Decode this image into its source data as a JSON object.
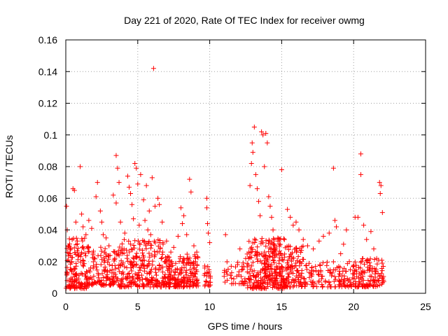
{
  "chart_data": {
    "type": "scatter",
    "title": "Day 221 of 2020, Rate Of TEC Index for receiver owmg",
    "xlabel": "GPS time / hours",
    "ylabel": "ROTI / TECUs",
    "xlim": [
      0,
      25
    ],
    "ylim": [
      0,
      0.16
    ],
    "xticks": [
      0,
      5,
      10,
      15,
      20,
      25
    ],
    "yticks": [
      0,
      0.02,
      0.04,
      0.06,
      0.08,
      0.1,
      0.12,
      0.14,
      0.16
    ],
    "xtick_labels": [
      "0",
      "5",
      "10",
      "15",
      "20",
      "25"
    ],
    "ytick_labels": [
      "0",
      "0.02",
      "0.04",
      "0.06",
      "0.08",
      "0.1",
      "0.12",
      "0.14",
      "0.16"
    ],
    "grid": true,
    "marker": "+",
    "marker_color": "#ff0000",
    "series": [
      {
        "points": [
          [
            0.05,
            0.055
          ],
          [
            0.1,
            0.04
          ],
          [
            0.2,
            0.03
          ],
          [
            0.3,
            0.025
          ],
          [
            0.4,
            0.02
          ],
          [
            0.5,
            0.066
          ],
          [
            0.6,
            0.065
          ],
          [
            0.7,
            0.045
          ],
          [
            0.8,
            0.033
          ],
          [
            1.0,
            0.08
          ],
          [
            1.1,
            0.05
          ],
          [
            1.2,
            0.042
          ],
          [
            1.4,
            0.037
          ],
          [
            1.6,
            0.046
          ],
          [
            1.8,
            0.041
          ],
          [
            2.1,
            0.061
          ],
          [
            2.2,
            0.07
          ],
          [
            2.4,
            0.052
          ],
          [
            2.5,
            0.045
          ],
          [
            2.6,
            0.037
          ],
          [
            2.8,
            0.035
          ],
          [
            3.0,
            0.03
          ],
          [
            3.3,
            0.062
          ],
          [
            3.5,
            0.057
          ],
          [
            3.5,
            0.087
          ],
          [
            3.6,
            0.079
          ],
          [
            3.7,
            0.07
          ],
          [
            3.8,
            0.045
          ],
          [
            4.1,
            0.038
          ],
          [
            4.3,
            0.074
          ],
          [
            4.4,
            0.067
          ],
          [
            4.5,
            0.063
          ],
          [
            4.6,
            0.056
          ],
          [
            4.7,
            0.047
          ],
          [
            4.8,
            0.082
          ],
          [
            4.9,
            0.079
          ],
          [
            5.0,
            0.069
          ],
          [
            5.1,
            0.043
          ],
          [
            5.2,
            0.075
          ],
          [
            5.4,
            0.059
          ],
          [
            5.5,
            0.046
          ],
          [
            5.6,
            0.068
          ],
          [
            5.7,
            0.04
          ],
          [
            5.8,
            0.052
          ],
          [
            5.9,
            0.037
          ],
          [
            6.0,
            0.073
          ],
          [
            6.1,
            0.142
          ],
          [
            6.2,
            0.055
          ],
          [
            6.4,
            0.06
          ],
          [
            6.5,
            0.056
          ],
          [
            6.7,
            0.045
          ],
          [
            7.0,
            0.033
          ],
          [
            7.3,
            0.026
          ],
          [
            7.5,
            0.029
          ],
          [
            7.8,
            0.036
          ],
          [
            8.0,
            0.054
          ],
          [
            8.1,
            0.044
          ],
          [
            8.2,
            0.049
          ],
          [
            8.4,
            0.037
          ],
          [
            8.6,
            0.072
          ],
          [
            8.7,
            0.064
          ],
          [
            8.9,
            0.03
          ],
          [
            9.1,
            0.026
          ],
          [
            9.8,
            0.06
          ],
          [
            9.8,
            0.054
          ],
          [
            9.85,
            0.044
          ],
          [
            9.9,
            0.038
          ],
          [
            10.0,
            0.032
          ],
          [
            11.1,
            0.037
          ],
          [
            12.1,
            0.028
          ],
          [
            12.5,
            0.022
          ],
          [
            12.7,
            0.022
          ],
          [
            12.8,
            0.068
          ],
          [
            12.9,
            0.082
          ],
          [
            12.95,
            0.095
          ],
          [
            13.0,
            0.089
          ],
          [
            13.1,
            0.105
          ],
          [
            13.2,
            0.075
          ],
          [
            13.3,
            0.066
          ],
          [
            13.4,
            0.058
          ],
          [
            13.5,
            0.049
          ],
          [
            13.6,
            0.102
          ],
          [
            13.7,
            0.1
          ],
          [
            13.8,
            0.08
          ],
          [
            13.9,
            0.101
          ],
          [
            14.0,
            0.095
          ],
          [
            14.1,
            0.061
          ],
          [
            14.2,
            0.055
          ],
          [
            14.3,
            0.048
          ],
          [
            14.4,
            0.04
          ],
          [
            14.5,
            0.034
          ],
          [
            14.6,
            0.028
          ],
          [
            14.9,
            0.025
          ],
          [
            15.0,
            0.078
          ],
          [
            15.4,
            0.053
          ],
          [
            15.6,
            0.048
          ],
          [
            15.8,
            0.043
          ],
          [
            16.0,
            0.045
          ],
          [
            16.2,
            0.04
          ],
          [
            16.5,
            0.034
          ],
          [
            16.8,
            0.03
          ],
          [
            17.2,
            0.028
          ],
          [
            17.6,
            0.033
          ],
          [
            17.9,
            0.036
          ],
          [
            18.3,
            0.038
          ],
          [
            18.6,
            0.079
          ],
          [
            18.7,
            0.046
          ],
          [
            18.8,
            0.042
          ],
          [
            19.1,
            0.025
          ],
          [
            19.3,
            0.031
          ],
          [
            19.5,
            0.04
          ],
          [
            19.7,
            0.02
          ],
          [
            20.1,
            0.048
          ],
          [
            20.3,
            0.048
          ],
          [
            20.5,
            0.088
          ],
          [
            20.5,
            0.075
          ],
          [
            20.7,
            0.043
          ],
          [
            20.9,
            0.034
          ],
          [
            21.2,
            0.039
          ],
          [
            21.4,
            0.028
          ],
          [
            21.6,
            0.022
          ],
          [
            21.8,
            0.07
          ],
          [
            21.85,
            0.063
          ],
          [
            21.9,
            0.068
          ],
          [
            22.0,
            0.051
          ]
        ]
      }
    ],
    "dense_clusters": [
      {
        "x0": 0.0,
        "x1": 1.5,
        "y0": 0.003,
        "y1": 0.035,
        "n": 140
      },
      {
        "x0": 1.5,
        "x1": 3.4,
        "y0": 0.005,
        "y1": 0.03,
        "n": 120
      },
      {
        "x0": 3.4,
        "x1": 6.8,
        "y0": 0.004,
        "y1": 0.034,
        "n": 260
      },
      {
        "x0": 6.8,
        "x1": 9.2,
        "y0": 0.004,
        "y1": 0.025,
        "n": 200
      },
      {
        "x0": 9.6,
        "x1": 10.1,
        "y0": 0.004,
        "y1": 0.018,
        "n": 25
      },
      {
        "x0": 11.0,
        "x1": 12.6,
        "y0": 0.006,
        "y1": 0.02,
        "n": 40
      },
      {
        "x0": 12.6,
        "x1": 15.2,
        "y0": 0.003,
        "y1": 0.035,
        "n": 280
      },
      {
        "x0": 15.2,
        "x1": 16.7,
        "y0": 0.004,
        "y1": 0.03,
        "n": 110
      },
      {
        "x0": 16.7,
        "x1": 19.2,
        "y0": 0.004,
        "y1": 0.02,
        "n": 80
      },
      {
        "x0": 19.2,
        "x1": 20.5,
        "y0": 0.004,
        "y1": 0.022,
        "n": 60
      },
      {
        "x0": 20.5,
        "x1": 22.1,
        "y0": 0.004,
        "y1": 0.022,
        "n": 90
      }
    ]
  }
}
